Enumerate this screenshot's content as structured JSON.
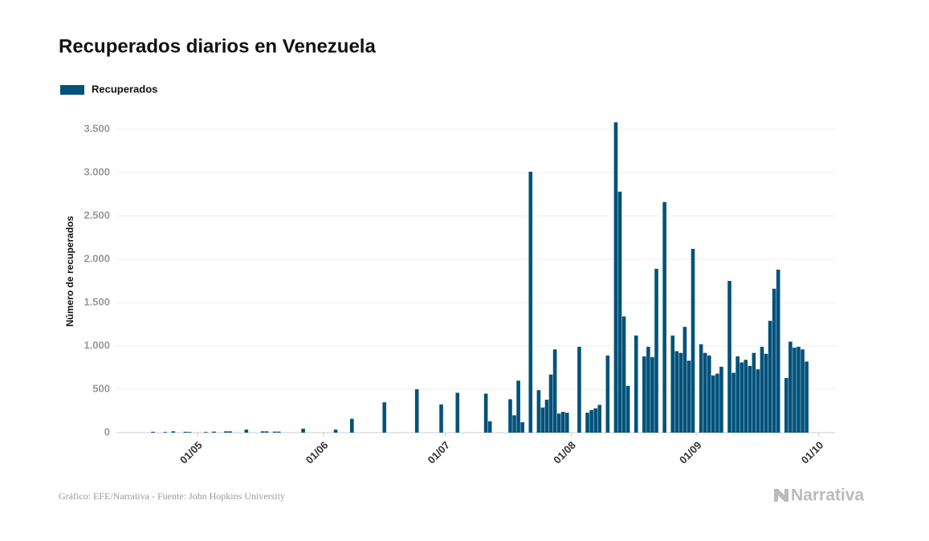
{
  "chart_data": {
    "type": "bar",
    "title": "Recuperados diarios en Venezuela",
    "y_label": "Número de recuperados",
    "source": "Gráfico: EFE/Narrativa - Fuente: John Hopkins University",
    "brand": "Narrativa",
    "x": [
      "20/04",
      "23/04",
      "25/04",
      "28/04",
      "29/04",
      "03/05",
      "05/05",
      "08/05",
      "09/05",
      "13/05",
      "17/05",
      "18/05",
      "20/05",
      "21/05",
      "27/05",
      "04/06",
      "08/06",
      "16/06",
      "24/06",
      "30/06",
      "04/07",
      "11/07",
      "12/07",
      "17/07",
      "18/07",
      "19/07",
      "20/07",
      "22/07",
      "24/07",
      "25/07",
      "26/07",
      "27/07",
      "28/07",
      "29/07",
      "30/07",
      "31/07",
      "03/08",
      "05/08",
      "06/08",
      "07/08",
      "08/08",
      "10/08",
      "12/08",
      "13/08",
      "14/08",
      "15/08",
      "17/08",
      "19/08",
      "20/08",
      "21/08",
      "22/08",
      "24/08",
      "26/08",
      "27/08",
      "28/08",
      "29/08",
      "30/08",
      "31/08",
      "02/09",
      "03/09",
      "04/09",
      "05/09",
      "06/09",
      "07/09",
      "09/09",
      "10/09",
      "11/09",
      "12/09",
      "13/09",
      "14/09",
      "15/09",
      "16/09",
      "17/09",
      "18/09",
      "19/09",
      "20/09",
      "21/09",
      "23/09",
      "24/09",
      "25/09",
      "26/09",
      "27/09",
      "28/09"
    ],
    "series": [
      {
        "name": "Recuperados",
        "color": "#00527a",
        "values": [
          10,
          8,
          15,
          10,
          8,
          8,
          12,
          15,
          15,
          35,
          15,
          15,
          12,
          12,
          45,
          35,
          160,
          350,
          500,
          325,
          460,
          450,
          130,
          385,
          200,
          600,
          120,
          3010,
          490,
          290,
          380,
          670,
          960,
          220,
          240,
          230,
          990,
          230,
          260,
          280,
          320,
          890,
          3580,
          2780,
          1340,
          540,
          1120,
          880,
          990,
          870,
          1890,
          2660,
          1120,
          940,
          920,
          1220,
          830,
          2120,
          1020,
          920,
          890,
          660,
          680,
          760,
          1750,
          690,
          880,
          810,
          840,
          770,
          920,
          730,
          990,
          910,
          1290,
          1660,
          1880,
          630,
          1050,
          980,
          990,
          960,
          820
        ]
      }
    ],
    "xlim": [
      "11/04",
      "05/10"
    ],
    "xticks": [
      "01/05",
      "01/06",
      "01/07",
      "01/08",
      "01/09",
      "01/10"
    ],
    "ylim": [
      0,
      3750
    ],
    "yticks": [
      0,
      500,
      {
        "value": 1000,
        "label": "1.000"
      },
      {
        "value": 1500,
        "label": "1.500"
      },
      {
        "value": 2000,
        "label": "2.000"
      },
      {
        "value": 2500,
        "label": "2.500"
      },
      {
        "value": 3000,
        "label": "3.000"
      },
      {
        "value": 3500,
        "label": "3.500"
      }
    ],
    "grid": true
  }
}
